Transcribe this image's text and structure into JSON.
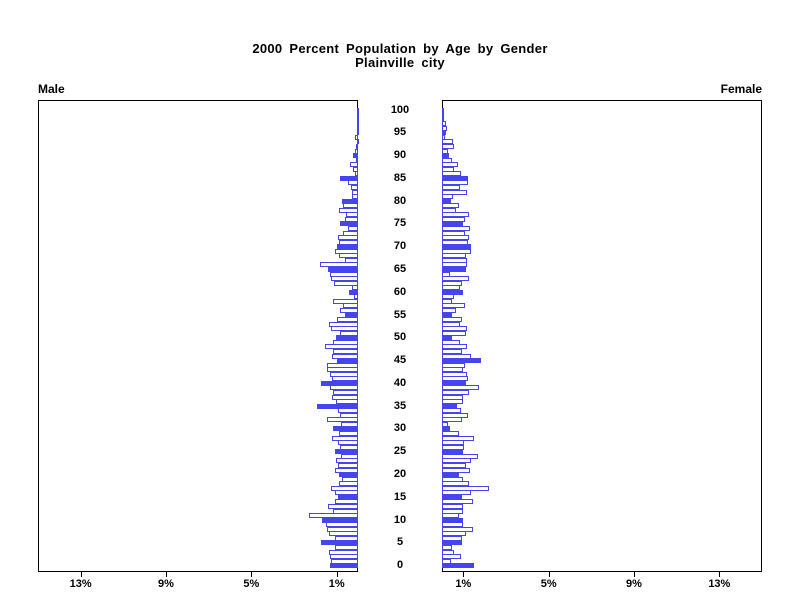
{
  "title": {
    "line1": "2000 Percent Population by Age by Gender",
    "line2": "Plainville city"
  },
  "panel_labels": {
    "left": "Male",
    "right": "Female"
  },
  "colors": {
    "bar_blue": "#4545ef",
    "bar_fill_white": "#ffffff",
    "axis": "#000000",
    "background": "#ffffff"
  },
  "chart_data": {
    "type": "bar",
    "subtype": "population-pyramid",
    "title": "2000 Percent Population by Age by Gender",
    "subtitle": "Plainville city",
    "legend_position": "none",
    "grid": false,
    "x_axis": {
      "unit": "percent",
      "max_percent": 15,
      "tick_values": [
        1,
        5,
        9,
        13
      ],
      "tick_labels": [
        "1%",
        "5%",
        "9%",
        "13%"
      ],
      "left_axis_order": [
        "13%",
        "9%",
        "5%",
        "1%"
      ],
      "right_axis_order": [
        "1%",
        "5%",
        "9%",
        "13%"
      ]
    },
    "y_axis": {
      "unit": "age",
      "age_min": 0,
      "age_max": 100,
      "labels": [
        "0",
        "5",
        "10",
        "15",
        "20",
        "25",
        "30",
        "35",
        "40",
        "45",
        "50",
        "55",
        "60",
        "65",
        "70",
        "75",
        "80",
        "85",
        "90",
        "95",
        "100"
      ]
    },
    "filled_every": 5,
    "male_percent": [
      1.3,
      1.26,
      1.32,
      1.36,
      1.06,
      1.75,
      1.1,
      1.35,
      1.45,
      1.52,
      1.7,
      2.28,
      1.15,
      1.4,
      1.1,
      0.95,
      1.1,
      1.25,
      0.9,
      0.75,
      0.9,
      1.1,
      0.95,
      1.05,
      0.8,
      1.06,
      0.85,
      0.95,
      1.2,
      0.9,
      1.15,
      0.8,
      1.44,
      0.83,
      0.95,
      1.9,
      1.05,
      1.2,
      1.15,
      1.3,
      1.75,
      1.24,
      1.31,
      1.47,
      1.44,
      1.0,
      1.24,
      1.16,
      1.55,
      1.19,
      1.03,
      0.84,
      1.28,
      1.35,
      0.97,
      0.61,
      0.84,
      0.7,
      1.16,
      0.2,
      0.41,
      0.29,
      1.13,
      1.26,
      1.33,
      1.41,
      1.78,
      0.6,
      0.9,
      1.06,
      1.0,
      0.9,
      0.95,
      0.7,
      0.45,
      0.85,
      0.6,
      0.55,
      0.9,
      0.68,
      0.75,
      0.3,
      0.28,
      0.33,
      0.45,
      0.83,
      0.15,
      0.25,
      0.37,
      0.1,
      0.23,
      0.15,
      0.1,
      0.05,
      0.15,
      0.05,
      0.04,
      0.03,
      0.02,
      0.02,
      0.03
    ],
    "female_percent": [
      1.5,
      0.41,
      0.9,
      0.54,
      0.46,
      0.92,
      0.92,
      1.12,
      1.46,
      1.0,
      0.97,
      0.81,
      1.0,
      1.0,
      1.43,
      0.92,
      1.38,
      2.19,
      1.27,
      0.97,
      0.8,
      1.3,
      1.12,
      1.35,
      1.7,
      1.0,
      1.05,
      1.05,
      1.5,
      0.8,
      0.38,
      0.3,
      0.92,
      1.23,
      0.87,
      0.72,
      0.98,
      1.0,
      1.27,
      1.73,
      1.12,
      1.23,
      1.18,
      1.0,
      1.07,
      1.84,
      1.38,
      0.92,
      1.15,
      0.84,
      0.46,
      1.12,
      1.15,
      0.84,
      0.92,
      0.46,
      0.66,
      1.07,
      0.46,
      0.57,
      0.97,
      0.84,
      0.92,
      1.27,
      0.38,
      1.12,
      1.15,
      1.18,
      1.12,
      1.38,
      1.38,
      1.2,
      1.25,
      1.1,
      1.3,
      1.0,
      1.1,
      1.25,
      0.65,
      0.8,
      0.41,
      0.5,
      1.15,
      0.85,
      1.2,
      1.23,
      0.9,
      0.55,
      0.77,
      0.45,
      0.34,
      0.3,
      0.55,
      0.5,
      0.15,
      0.2,
      0.23,
      0.18,
      0.02,
      0.02,
      0.05
    ]
  }
}
